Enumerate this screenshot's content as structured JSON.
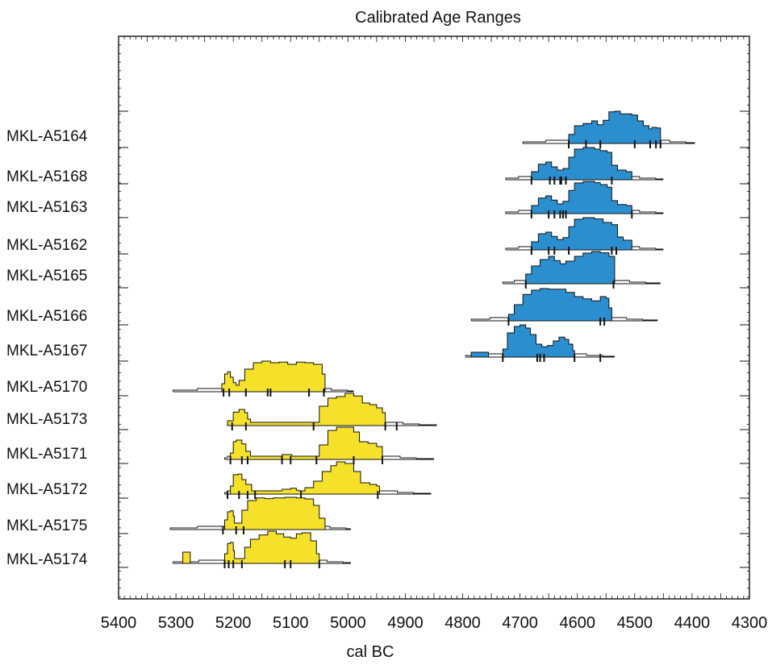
{
  "chart_data": {
    "type": "area",
    "title": "Calibrated Age Ranges",
    "xlabel": "cal BC",
    "ylabel": "",
    "xlim": [
      5400,
      4300
    ],
    "x_reversed": true,
    "x_ticks": [
      5400,
      5300,
      5200,
      5100,
      5000,
      4900,
      4800,
      4700,
      4600,
      4500,
      4400,
      4300
    ],
    "grid": false,
    "legend": "none",
    "colors": {
      "blue": "#2b8fcf",
      "yellow": "#f5e12a",
      "line": "#111111"
    },
    "series": [
      {
        "name": "MKL-A5164",
        "color": "blue",
        "extent": [
          4695,
          4395
        ],
        "fill_range": [
          4615,
          4455
        ],
        "profile": [
          [
            4615,
            0.28
          ],
          [
            4605,
            0.55
          ],
          [
            4590,
            0.62
          ],
          [
            4575,
            0.7
          ],
          [
            4565,
            0.58
          ],
          [
            4555,
            0.72
          ],
          [
            4545,
            0.98
          ],
          [
            4535,
            1.0
          ],
          [
            4525,
            0.92
          ],
          [
            4505,
            0.88
          ],
          [
            4495,
            0.7
          ],
          [
            4485,
            0.55
          ],
          [
            4475,
            0.45
          ],
          [
            4470,
            0.5
          ],
          [
            4462,
            0.48
          ],
          [
            4455,
            0.15
          ]
        ],
        "ticks": [
          4615,
          4585,
          4560,
          4500,
          4473,
          4463,
          4455
        ]
      },
      {
        "name": "MKL-A5168",
        "color": "blue",
        "extent": [
          4725,
          4450
        ],
        "fill_range": [
          4680,
          4505
        ],
        "profile": [
          [
            4680,
            0.25
          ],
          [
            4668,
            0.48
          ],
          [
            4655,
            0.55
          ],
          [
            4645,
            0.4
          ],
          [
            4635,
            0.3
          ],
          [
            4625,
            0.35
          ],
          [
            4615,
            0.7
          ],
          [
            4605,
            0.95
          ],
          [
            4590,
            1.0
          ],
          [
            4570,
            0.95
          ],
          [
            4560,
            0.9
          ],
          [
            4548,
            0.85
          ],
          [
            4540,
            0.45
          ],
          [
            4530,
            0.3
          ],
          [
            4515,
            0.25
          ],
          [
            4505,
            0.15
          ]
        ],
        "ticks": [
          4680,
          4648,
          4640,
          4630,
          4628,
          4620,
          4540
        ]
      },
      {
        "name": "MKL-A5163",
        "color": "blue",
        "extent": [
          4725,
          4450
        ],
        "fill_range": [
          4680,
          4505
        ],
        "profile": [
          [
            4680,
            0.25
          ],
          [
            4668,
            0.48
          ],
          [
            4655,
            0.55
          ],
          [
            4645,
            0.42
          ],
          [
            4635,
            0.3
          ],
          [
            4625,
            0.38
          ],
          [
            4615,
            0.72
          ],
          [
            4605,
            0.95
          ],
          [
            4590,
            1.0
          ],
          [
            4570,
            0.96
          ],
          [
            4560,
            0.9
          ],
          [
            4548,
            0.82
          ],
          [
            4540,
            0.4
          ],
          [
            4530,
            0.28
          ],
          [
            4515,
            0.25
          ],
          [
            4505,
            0.15
          ]
        ],
        "ticks": [
          4680,
          4650,
          4640,
          4630,
          4625,
          4620,
          4505
        ]
      },
      {
        "name": "MKL-A5162",
        "color": "blue",
        "extent": [
          4725,
          4450
        ],
        "fill_range": [
          4680,
          4505
        ],
        "profile": [
          [
            4680,
            0.25
          ],
          [
            4668,
            0.5
          ],
          [
            4655,
            0.55
          ],
          [
            4645,
            0.42
          ],
          [
            4635,
            0.32
          ],
          [
            4625,
            0.38
          ],
          [
            4615,
            0.72
          ],
          [
            4605,
            0.95
          ],
          [
            4590,
            1.0
          ],
          [
            4570,
            0.96
          ],
          [
            4555,
            0.85
          ],
          [
            4540,
            0.78
          ],
          [
            4530,
            0.4
          ],
          [
            4520,
            0.3
          ],
          [
            4505,
            0.15
          ]
        ],
        "ticks": [
          4680,
          4650,
          4640,
          4615,
          4540,
          4532
        ]
      },
      {
        "name": "MKL-A5165",
        "color": "blue",
        "extent": [
          4730,
          4455
        ],
        "fill_range": [
          4690,
          4535
        ],
        "profile": [
          [
            4690,
            0.3
          ],
          [
            4680,
            0.55
          ],
          [
            4665,
            0.75
          ],
          [
            4650,
            0.85
          ],
          [
            4640,
            0.72
          ],
          [
            4630,
            0.62
          ],
          [
            4620,
            0.7
          ],
          [
            4605,
            0.85
          ],
          [
            4590,
            0.95
          ],
          [
            4575,
            1.0
          ],
          [
            4560,
            0.96
          ],
          [
            4545,
            0.85
          ],
          [
            4535,
            0.2
          ]
        ],
        "ticks": [
          4690,
          4537
        ]
      },
      {
        "name": "MKL-A5166",
        "color": "blue",
        "extent": [
          4785,
          4460
        ],
        "fill_range": [
          4720,
          4540
        ],
        "profile": [
          [
            4720,
            0.2
          ],
          [
            4710,
            0.5
          ],
          [
            4695,
            0.82
          ],
          [
            4680,
            0.95
          ],
          [
            4665,
            1.0
          ],
          [
            4650,
            0.98
          ],
          [
            4635,
            0.98
          ],
          [
            4620,
            0.88
          ],
          [
            4605,
            0.75
          ],
          [
            4590,
            0.68
          ],
          [
            4575,
            0.62
          ],
          [
            4560,
            0.75
          ],
          [
            4550,
            0.7
          ],
          [
            4545,
            0.4
          ],
          [
            4540,
            0.15
          ]
        ],
        "ticks": [
          4720,
          4560,
          4553
        ]
      },
      {
        "name": "MKL-A5167",
        "color": "blue",
        "extent": [
          4795,
          4535
        ],
        "fill_range": [
          4730,
          4605
        ],
        "profile": [
          [
            4730,
            0.25
          ],
          [
            4722,
            0.75
          ],
          [
            4710,
            0.95
          ],
          [
            4700,
            1.0
          ],
          [
            4690,
            0.9
          ],
          [
            4682,
            0.7
          ],
          [
            4672,
            0.4
          ],
          [
            4662,
            0.32
          ],
          [
            4652,
            0.36
          ],
          [
            4642,
            0.5
          ],
          [
            4632,
            0.62
          ],
          [
            4622,
            0.55
          ],
          [
            4615,
            0.4
          ],
          [
            4608,
            0.2
          ],
          [
            4605,
            0.1
          ]
        ],
        "ticks": [
          4730,
          4670,
          4665,
          4658,
          4605,
          4560
        ],
        "extra_bumps": [
          [
            4785,
            4755,
            0.15
          ]
        ]
      },
      {
        "name": "MKL-A5170",
        "color": "yellow",
        "extent": [
          5305,
          4990
        ],
        "fill_range": [
          5220,
          5040
        ],
        "profile": [
          [
            5220,
            0.25
          ],
          [
            5215,
            0.55
          ],
          [
            5210,
            0.62
          ],
          [
            5205,
            0.45
          ],
          [
            5200,
            0.28
          ],
          [
            5195,
            0.2
          ],
          [
            5190,
            0.35
          ],
          [
            5180,
            0.7
          ],
          [
            5165,
            0.9
          ],
          [
            5150,
            0.95
          ],
          [
            5135,
            0.9
          ],
          [
            5120,
            0.92
          ],
          [
            5105,
            0.85
          ],
          [
            5090,
            0.92
          ],
          [
            5075,
            0.9
          ],
          [
            5060,
            0.85
          ],
          [
            5045,
            0.55
          ],
          [
            5040,
            0.2
          ]
        ],
        "ticks": [
          5217,
          5207,
          5178,
          5140,
          5135,
          5068,
          5042
        ]
      },
      {
        "name": "MKL-A5173",
        "color": "yellow",
        "extent": [
          5210,
          4845
        ],
        "fill_range": [
          5210,
          4935
        ],
        "profile": [
          [
            5210,
            0.15
          ],
          [
            5200,
            0.42
          ],
          [
            5190,
            0.5
          ],
          [
            5180,
            0.4
          ],
          [
            5175,
            0.2
          ],
          [
            5170,
            0.1
          ],
          [
            5060,
            0.1
          ],
          [
            5050,
            0.6
          ],
          [
            5035,
            0.85
          ],
          [
            5020,
            0.9
          ],
          [
            5005,
            1.0
          ],
          [
            4990,
            0.92
          ],
          [
            4975,
            0.7
          ],
          [
            4962,
            0.65
          ],
          [
            4950,
            0.55
          ],
          [
            4940,
            0.4
          ],
          [
            4935,
            0.15
          ]
        ],
        "ticks": [
          5202,
          5178,
          5060,
          4935,
          4915
        ]
      },
      {
        "name": "MKL-A5171",
        "color": "yellow",
        "extent": [
          5215,
          4850
        ],
        "fill_range": [
          5205,
          4940
        ],
        "profile": [
          [
            5205,
            0.2
          ],
          [
            5200,
            0.55
          ],
          [
            5195,
            0.6
          ],
          [
            5185,
            0.48
          ],
          [
            5178,
            0.25
          ],
          [
            5170,
            0.1
          ],
          [
            5120,
            0.1
          ],
          [
            5115,
            0.15
          ],
          [
            5105,
            0.15
          ],
          [
            5098,
            0.1
          ],
          [
            5060,
            0.1
          ],
          [
            5050,
            0.45
          ],
          [
            5035,
            0.9
          ],
          [
            5020,
            1.0
          ],
          [
            5005,
            1.0
          ],
          [
            4990,
            0.85
          ],
          [
            4980,
            0.55
          ],
          [
            4965,
            0.5
          ],
          [
            4950,
            0.4
          ],
          [
            4940,
            0.15
          ]
        ],
        "ticks": [
          5205,
          5185,
          5175,
          5115,
          5100,
          5055,
          4990,
          4940
        ]
      },
      {
        "name": "MKL-A5172",
        "color": "yellow",
        "extent": [
          5215,
          4855
        ],
        "fill_range": [
          5205,
          4945
        ],
        "profile": [
          [
            5205,
            0.25
          ],
          [
            5200,
            0.6
          ],
          [
            5192,
            0.62
          ],
          [
            5185,
            0.45
          ],
          [
            5178,
            0.3
          ],
          [
            5168,
            0.1
          ],
          [
            5125,
            0.1
          ],
          [
            5115,
            0.15
          ],
          [
            5100,
            0.18
          ],
          [
            5090,
            0.12
          ],
          [
            5085,
            0.1
          ],
          [
            5075,
            0.2
          ],
          [
            5060,
            0.4
          ],
          [
            5045,
            0.7
          ],
          [
            5030,
            0.88
          ],
          [
            5020,
            1.0
          ],
          [
            5005,
            0.95
          ],
          [
            4990,
            0.7
          ],
          [
            4978,
            0.35
          ],
          [
            4962,
            0.3
          ],
          [
            4950,
            0.25
          ],
          [
            4945,
            0.1
          ]
        ],
        "ticks": [
          5210,
          5190,
          5175,
          5162,
          5082,
          4948
        ]
      },
      {
        "name": "MKL-A5175",
        "color": "yellow",
        "extent": [
          5310,
          4995
        ],
        "fill_range": [
          5215,
          5040
        ],
        "profile": [
          [
            5215,
            0.3
          ],
          [
            5210,
            0.55
          ],
          [
            5205,
            0.58
          ],
          [
            5200,
            0.42
          ],
          [
            5198,
            0.2
          ],
          [
            5192,
            0.2
          ],
          [
            5185,
            0.6
          ],
          [
            5175,
            0.9
          ],
          [
            5160,
            0.98
          ],
          [
            5145,
            0.96
          ],
          [
            5130,
            0.98
          ],
          [
            5110,
            1.0
          ],
          [
            5090,
            0.98
          ],
          [
            5075,
            0.95
          ],
          [
            5060,
            0.75
          ],
          [
            5050,
            0.35
          ],
          [
            5040,
            0.12
          ]
        ],
        "ticks": [
          5218,
          5195,
          5182
        ]
      },
      {
        "name": "MKL-A5174",
        "color": "yellow",
        "extent": [
          5305,
          4995
        ],
        "fill_range": [
          5215,
          5050
        ],
        "profile": [
          [
            5215,
            0.3
          ],
          [
            5210,
            0.62
          ],
          [
            5205,
            0.65
          ],
          [
            5200,
            0.4
          ],
          [
            5198,
            0.15
          ],
          [
            5185,
            0.15
          ],
          [
            5180,
            0.5
          ],
          [
            5170,
            0.75
          ],
          [
            5155,
            0.88
          ],
          [
            5140,
            1.0
          ],
          [
            5125,
            0.92
          ],
          [
            5112,
            0.82
          ],
          [
            5100,
            0.78
          ],
          [
            5090,
            0.92
          ],
          [
            5080,
            0.95
          ],
          [
            5065,
            0.7
          ],
          [
            5055,
            0.3
          ],
          [
            5050,
            0.15
          ]
        ],
        "ticks": [
          5215,
          5208,
          5200,
          5185,
          5110,
          5100,
          5050
        ],
        "extra_bumps": [
          [
            5288,
            5275,
            0.35
          ]
        ]
      }
    ]
  }
}
